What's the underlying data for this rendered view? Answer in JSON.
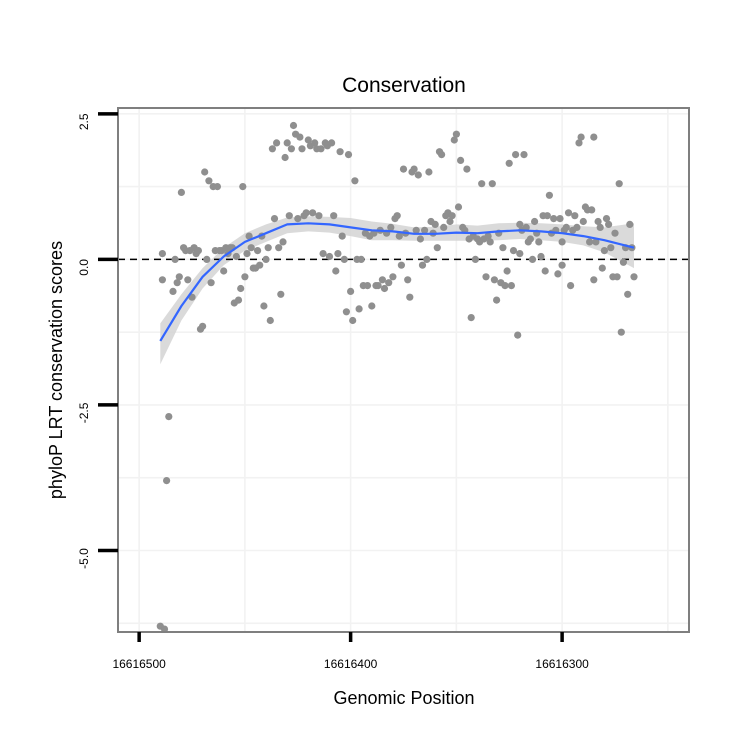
{
  "chart_data": {
    "type": "scatter",
    "title": "Conservation",
    "xlabel": "Genomic Position",
    "ylabel": "phyloP LRT conservation scores",
    "xlim": [
      16616510,
      16616240
    ],
    "ylim": [
      -6.4,
      2.6
    ],
    "x_reversed": true,
    "grid": true,
    "xticks": [
      16616500,
      16616400,
      16616300
    ],
    "xtick_labels": [
      "16616500",
      "16616400",
      "16616300"
    ],
    "yticks": [
      2.5,
      0.0,
      -2.5,
      -5.0
    ],
    "ytick_labels": [
      "2.5",
      "0.0",
      "-2.5",
      "-5.0"
    ],
    "reference_line": {
      "y": 0,
      "style": "dashed",
      "color": "#000000"
    },
    "colors": {
      "points": "#8f8f8f",
      "smooth": "#3366ff",
      "band": "#d3d3d3",
      "frame": "#7f7f7f",
      "grid": "#f2f2f2"
    },
    "points": [
      [
        16616490,
        -6.3
      ],
      [
        16616488,
        -6.35
      ],
      [
        16616487,
        -3.8
      ],
      [
        16616486,
        -2.7
      ],
      [
        16616489,
        -0.35
      ],
      [
        16616489,
        0.1
      ],
      [
        16616484,
        -0.55
      ],
      [
        16616483,
        0.0
      ],
      [
        16616482,
        -0.4
      ],
      [
        16616481,
        -0.3
      ],
      [
        16616480,
        1.15
      ],
      [
        16616479,
        0.2
      ],
      [
        16616478,
        0.15
      ],
      [
        16616477,
        -0.35
      ],
      [
        16616476,
        0.15
      ],
      [
        16616475,
        -0.65
      ],
      [
        16616474,
        0.2
      ],
      [
        16616473,
        0.1
      ],
      [
        16616472,
        0.15
      ],
      [
        16616471,
        -1.2
      ],
      [
        16616470,
        -1.15
      ],
      [
        16616469,
        1.5
      ],
      [
        16616468,
        0.0
      ],
      [
        16616467,
        1.35
      ],
      [
        16616466,
        -0.4
      ],
      [
        16616465,
        1.25
      ],
      [
        16616464,
        0.15
      ],
      [
        16616463,
        1.25
      ],
      [
        16616462,
        0.15
      ],
      [
        16616461,
        0.15
      ],
      [
        16616460,
        -0.2
      ],
      [
        16616459,
        0.2
      ],
      [
        16616458,
        0.1
      ],
      [
        16616457,
        0.2
      ],
      [
        16616456,
        0.2
      ],
      [
        16616455,
        -0.75
      ],
      [
        16616454,
        0.05
      ],
      [
        16616453,
        -0.7
      ],
      [
        16616452,
        -0.5
      ],
      [
        16616451,
        1.25
      ],
      [
        16616450,
        -0.3
      ],
      [
        16616449,
        0.1
      ],
      [
        16616448,
        0.4
      ],
      [
        16616447,
        0.2
      ],
      [
        16616446,
        -0.15
      ],
      [
        16616445,
        -0.15
      ],
      [
        16616444,
        0.15
      ],
      [
        16616443,
        -0.1
      ],
      [
        16616442,
        0.4
      ],
      [
        16616441,
        -0.8
      ],
      [
        16616440,
        0.0
      ],
      [
        16616439,
        0.2
      ],
      [
        16616438,
        -1.05
      ],
      [
        16616437,
        1.9
      ],
      [
        16616436,
        0.7
      ],
      [
        16616435,
        2.0
      ],
      [
        16616434,
        0.2
      ],
      [
        16616433,
        -0.6
      ],
      [
        16616432,
        0.3
      ],
      [
        16616431,
        1.75
      ],
      [
        16616430,
        2.0
      ],
      [
        16616429,
        0.75
      ],
      [
        16616428,
        1.9
      ],
      [
        16616427,
        2.3
      ],
      [
        16616426,
        2.15
      ],
      [
        16616425,
        0.7
      ],
      [
        16616424,
        2.1
      ],
      [
        16616423,
        1.9
      ],
      [
        16616422,
        0.75
      ],
      [
        16616421,
        0.8
      ],
      [
        16616420,
        2.05
      ],
      [
        16616419,
        1.95
      ],
      [
        16616418,
        0.8
      ],
      [
        16616417,
        2.0
      ],
      [
        16616416,
        1.9
      ],
      [
        16616415,
        0.75
      ],
      [
        16616414,
        1.9
      ],
      [
        16616413,
        0.1
      ],
      [
        16616412,
        2.0
      ],
      [
        16616411,
        1.95
      ],
      [
        16616410,
        0.05
      ],
      [
        16616409,
        2.0
      ],
      [
        16616408,
        0.75
      ],
      [
        16616407,
        -0.2
      ],
      [
        16616406,
        0.1
      ],
      [
        16616405,
        1.85
      ],
      [
        16616404,
        0.4
      ],
      [
        16616403,
        0.0
      ],
      [
        16616402,
        -0.9
      ],
      [
        16616401,
        1.8
      ],
      [
        16616400,
        -0.55
      ],
      [
        16616399,
        -1.05
      ],
      [
        16616398,
        1.35
      ],
      [
        16616397,
        0.0
      ],
      [
        16616396,
        -0.85
      ],
      [
        16616395,
        0.0
      ],
      [
        16616394,
        -0.45
      ],
      [
        16616393,
        0.45
      ],
      [
        16616392,
        -0.45
      ],
      [
        16616391,
        0.4
      ],
      [
        16616390,
        -0.8
      ],
      [
        16616389,
        0.45
      ],
      [
        16616388,
        -0.45
      ],
      [
        16616387,
        -0.45
      ],
      [
        16616386,
        0.5
      ],
      [
        16616385,
        -0.35
      ],
      [
        16616384,
        -0.5
      ],
      [
        16616383,
        0.45
      ],
      [
        16616382,
        -0.4
      ],
      [
        16616381,
        0.55
      ],
      [
        16616380,
        -0.3
      ],
      [
        16616379,
        0.7
      ],
      [
        16616378,
        0.75
      ],
      [
        16616377,
        0.4
      ],
      [
        16616376,
        -0.1
      ],
      [
        16616375,
        1.55
      ],
      [
        16616374,
        0.45
      ],
      [
        16616373,
        -0.35
      ],
      [
        16616372,
        -0.65
      ],
      [
        16616371,
        1.5
      ],
      [
        16616370,
        1.55
      ],
      [
        16616369,
        0.5
      ],
      [
        16616368,
        1.45
      ],
      [
        16616367,
        0.35
      ],
      [
        16616366,
        -0.1
      ],
      [
        16616365,
        0.5
      ],
      [
        16616364,
        0.0
      ],
      [
        16616363,
        1.5
      ],
      [
        16616362,
        0.65
      ],
      [
        16616361,
        0.45
      ],
      [
        16616360,
        0.6
      ],
      [
        16616359,
        0.2
      ],
      [
        16616358,
        1.85
      ],
      [
        16616357,
        1.8
      ],
      [
        16616356,
        0.55
      ],
      [
        16616355,
        0.75
      ],
      [
        16616354,
        0.8
      ],
      [
        16616353,
        0.65
      ],
      [
        16616352,
        0.75
      ],
      [
        16616351,
        2.05
      ],
      [
        16616350,
        2.15
      ],
      [
        16616349,
        0.9
      ],
      [
        16616348,
        1.7
      ],
      [
        16616347,
        0.55
      ],
      [
        16616346,
        0.5
      ],
      [
        16616345,
        1.55
      ],
      [
        16616344,
        0.35
      ],
      [
        16616343,
        -1.0
      ],
      [
        16616342,
        0.4
      ],
      [
        16616341,
        0.0
      ],
      [
        16616340,
        0.35
      ],
      [
        16616339,
        0.3
      ],
      [
        16616338,
        1.3
      ],
      [
        16616337,
        0.35
      ],
      [
        16616336,
        -0.3
      ],
      [
        16616335,
        0.4
      ],
      [
        16616334,
        0.3
      ],
      [
        16616333,
        1.3
      ],
      [
        16616332,
        -0.35
      ],
      [
        16616331,
        -0.7
      ],
      [
        16616330,
        0.45
      ],
      [
        16616329,
        -0.4
      ],
      [
        16616328,
        0.2
      ],
      [
        16616327,
        -0.45
      ],
      [
        16616326,
        -0.2
      ],
      [
        16616325,
        1.65
      ],
      [
        16616324,
        -0.45
      ],
      [
        16616323,
        0.15
      ],
      [
        16616322,
        1.8
      ],
      [
        16616321,
        -1.3
      ],
      [
        16616320,
        0.6
      ],
      [
        16616319,
        0.5
      ],
      [
        16616318,
        1.8
      ],
      [
        16616317,
        0.55
      ],
      [
        16616316,
        0.3
      ],
      [
        16616315,
        0.35
      ],
      [
        16616314,
        0.0
      ],
      [
        16616313,
        0.65
      ],
      [
        16616312,
        0.45
      ],
      [
        16616311,
        0.3
      ],
      [
        16616310,
        0.05
      ],
      [
        16616309,
        0.75
      ],
      [
        16616308,
        -0.2
      ],
      [
        16616307,
        0.75
      ],
      [
        16616306,
        1.1
      ],
      [
        16616305,
        0.45
      ],
      [
        16616304,
        0.7
      ],
      [
        16616303,
        0.5
      ],
      [
        16616302,
        -0.25
      ],
      [
        16616301,
        0.7
      ],
      [
        16616300,
        0.3
      ],
      [
        16616299,
        0.5
      ],
      [
        16616298,
        0.55
      ],
      [
        16616297,
        0.8
      ],
      [
        16616296,
        -0.45
      ],
      [
        16616295,
        0.5
      ],
      [
        16616294,
        0.75
      ],
      [
        16616293,
        0.55
      ],
      [
        16616292,
        2.0
      ],
      [
        16616291,
        2.1
      ],
      [
        16616290,
        0.65
      ],
      [
        16616289,
        0.9
      ],
      [
        16616288,
        0.85
      ],
      [
        16616287,
        0.3
      ],
      [
        16616286,
        0.85
      ],
      [
        16616285,
        2.1
      ],
      [
        16616284,
        0.3
      ],
      [
        16616283,
        0.65
      ],
      [
        16616282,
        0.55
      ],
      [
        16616281,
        -0.15
      ],
      [
        16616280,
        0.15
      ],
      [
        16616279,
        0.7
      ],
      [
        16616278,
        0.6
      ],
      [
        16616277,
        0.2
      ],
      [
        16616276,
        -0.3
      ],
      [
        16616275,
        0.45
      ],
      [
        16616274,
        -0.3
      ],
      [
        16616273,
        1.3
      ],
      [
        16616272,
        -1.25
      ],
      [
        16616271,
        -0.05
      ],
      [
        16616270,
        0.2
      ],
      [
        16616269,
        -0.6
      ],
      [
        16616268,
        0.6
      ],
      [
        16616267,
        0.2
      ],
      [
        16616266,
        -0.3
      ],
      [
        16616285,
        -0.35
      ],
      [
        16616300,
        -0.1
      ],
      [
        16616320,
        0.1
      ]
    ],
    "smooth": [
      [
        16616490,
        -1.4
      ],
      [
        16616480,
        -0.8
      ],
      [
        16616470,
        -0.3
      ],
      [
        16616460,
        0.05
      ],
      [
        16616450,
        0.3
      ],
      [
        16616440,
        0.45
      ],
      [
        16616430,
        0.6
      ],
      [
        16616420,
        0.62
      ],
      [
        16616410,
        0.6
      ],
      [
        16616400,
        0.55
      ],
      [
        16616390,
        0.5
      ],
      [
        16616380,
        0.48
      ],
      [
        16616370,
        0.44
      ],
      [
        16616360,
        0.44
      ],
      [
        16616350,
        0.46
      ],
      [
        16616340,
        0.45
      ],
      [
        16616330,
        0.48
      ],
      [
        16616320,
        0.5
      ],
      [
        16616310,
        0.48
      ],
      [
        16616300,
        0.45
      ],
      [
        16616290,
        0.4
      ],
      [
        16616280,
        0.33
      ],
      [
        16616266,
        0.2
      ]
    ],
    "band": {
      "upper": [
        [
          16616490,
          -1.1
        ],
        [
          16616480,
          -0.6
        ],
        [
          16616470,
          -0.15
        ],
        [
          16616460,
          0.2
        ],
        [
          16616450,
          0.45
        ],
        [
          16616440,
          0.6
        ],
        [
          16616430,
          0.72
        ],
        [
          16616420,
          0.74
        ],
        [
          16616410,
          0.73
        ],
        [
          16616400,
          0.71
        ],
        [
          16616390,
          0.65
        ],
        [
          16616380,
          0.61
        ],
        [
          16616370,
          0.55
        ],
        [
          16616360,
          0.56
        ],
        [
          16616350,
          0.6
        ],
        [
          16616340,
          0.58
        ],
        [
          16616330,
          0.62
        ],
        [
          16616320,
          0.63
        ],
        [
          16616310,
          0.62
        ],
        [
          16616300,
          0.6
        ],
        [
          16616290,
          0.57
        ],
        [
          16616280,
          0.55
        ],
        [
          16616266,
          0.62
        ]
      ],
      "lower": [
        [
          16616490,
          -1.8
        ],
        [
          16616480,
          -1.05
        ],
        [
          16616470,
          -0.5
        ],
        [
          16616460,
          -0.1
        ],
        [
          16616450,
          0.15
        ],
        [
          16616440,
          0.3
        ],
        [
          16616430,
          0.45
        ],
        [
          16616420,
          0.48
        ],
        [
          16616410,
          0.46
        ],
        [
          16616400,
          0.4
        ],
        [
          16616390,
          0.33
        ],
        [
          16616380,
          0.33
        ],
        [
          16616370,
          0.32
        ],
        [
          16616360,
          0.32
        ],
        [
          16616350,
          0.32
        ],
        [
          16616340,
          0.32
        ],
        [
          16616330,
          0.33
        ],
        [
          16616320,
          0.35
        ],
        [
          16616310,
          0.33
        ],
        [
          16616300,
          0.3
        ],
        [
          16616290,
          0.24
        ],
        [
          16616280,
          0.12
        ],
        [
          16616266,
          -0.15
        ]
      ]
    }
  }
}
